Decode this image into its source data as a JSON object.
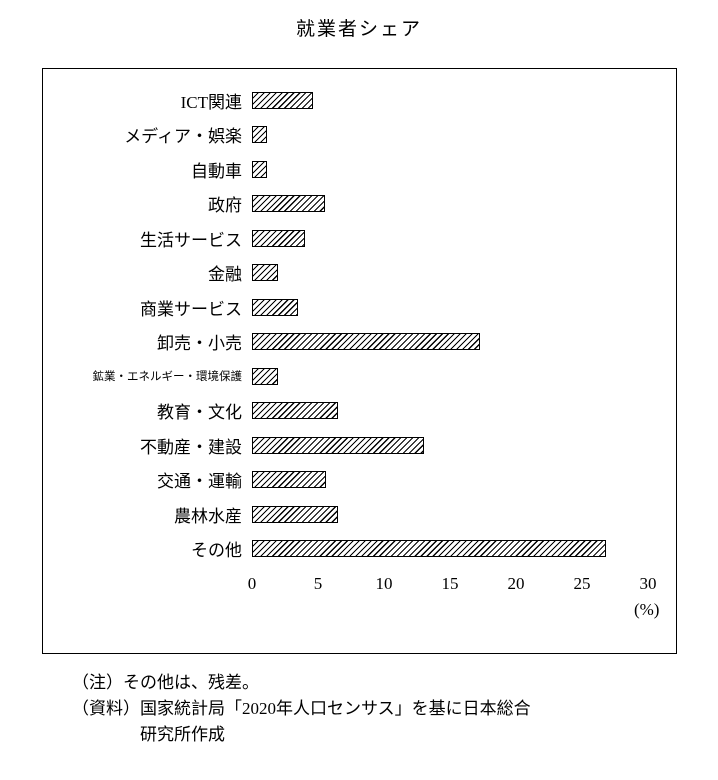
{
  "title": "就業者シェア",
  "chart_data": {
    "type": "bar",
    "orientation": "horizontal",
    "title": "就業者シェア",
    "categories": [
      "ICT関連",
      "メディア・娯楽",
      "自動車",
      "政府",
      "生活サービス",
      "金融",
      "商業サービス",
      "卸売・小売",
      "鉱業・エネルギー・環境保護",
      "教育・文化",
      "不動産・建設",
      "交通・運輸",
      "農林水産",
      "その他"
    ],
    "values": [
      4.6,
      1.1,
      1.1,
      5.5,
      4.0,
      2.0,
      3.5,
      17.3,
      2.0,
      6.5,
      13.0,
      5.6,
      6.5,
      26.8
    ],
    "xlabel": "(%)",
    "xlim": [
      0,
      30
    ],
    "xticks": [
      0,
      5,
      10,
      15,
      20,
      25,
      30
    ],
    "bar_style": "diagonal-hatch",
    "bar_color": "#000000",
    "background": "#ffffff",
    "legend": "none",
    "grid": "off"
  },
  "notes": {
    "line1": "（注）その他は、残差。",
    "line2": "（資料）国家統計局「2020年人口センサス」を基に日本総合",
    "line3": "研究所作成"
  }
}
